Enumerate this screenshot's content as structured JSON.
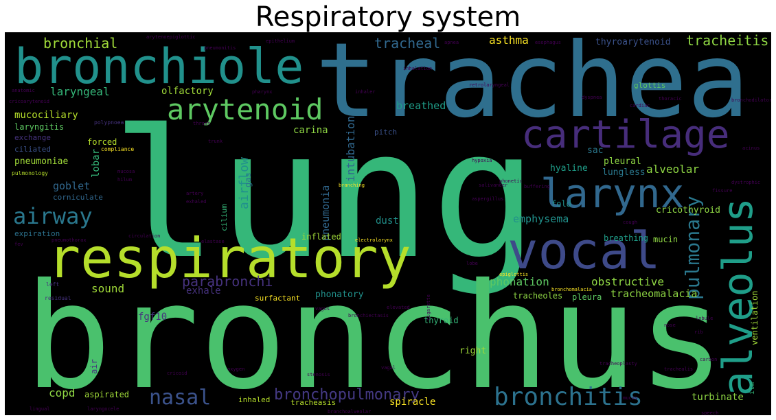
{
  "title": "Respiratory system",
  "colors": {
    "background": "#000000",
    "palette": [
      "#440154",
      "#46327e",
      "#365c8d",
      "#277f8e",
      "#1fa187",
      "#4ac16d",
      "#a0da39",
      "#fde725"
    ]
  },
  "words": {
    "lung": "lung",
    "bronchus": "bronchus",
    "trachea": "trachea",
    "respiratory": "respiratory",
    "bronchiole": "bronchiole",
    "vocal": "vocal",
    "alveolus": "alveolus",
    "cartilage": "cartilage",
    "larynx": "larynx",
    "arytenoid": "arytenoid",
    "bronchitis": "bronchitis",
    "nasal": "nasal",
    "airway": "airway",
    "bronchopulmonary": "bronchopulmonary",
    "pulmonary": "pulmonary",
    "parabronchi": "parabronchi",
    "bronchial": "bronchial",
    "tracheal": "tracheal",
    "tracheitis": "tracheitis",
    "asthma": "asthma",
    "thyroarytenoid": "thyroarytenoid",
    "laryngeal": "laryngeal",
    "olfactory": "olfactory",
    "mucociliary": "mucociliary",
    "laryngitis": "laryngitis",
    "carina": "carina",
    "intubation": "intubation",
    "breathed": "breathed",
    "pitch": "pitch",
    "airflow": "airflow",
    "gas": "gas",
    "pneumonia": "pneumonia",
    "lobar": "lobar",
    "forced": "forced",
    "pleural": "pleural",
    "hyaline": "hyaline",
    "alveolar": "alveolar",
    "lungless": "lungless",
    "sac": "sac",
    "exchange": "exchange",
    "ciliated": "ciliated",
    "pneumoniae": "pneumoniae",
    "goblet": "goblet",
    "corniculate": "corniculate",
    "dust": "dust",
    "emphysema": "emphysema",
    "cricothyroid": "cricothyroid",
    "fold": "fold",
    "breathing": "breathing",
    "mucin": "mucin",
    "expiration": "expiration",
    "inflated": "inflated",
    "sound": "sound",
    "exhale": "exhale",
    "phonation": "phonation",
    "obstructive": "obstructive",
    "surfactant": "surfactant",
    "phonatory": "phonatory",
    "tracheoles": "tracheoles",
    "pleura": "pleura",
    "tracheomalacia": "tracheomalacia",
    "ventilation": "ventilation",
    "fgf10": "fgf10",
    "thyroid": "thyroid",
    "right": "right",
    "copd": "copd",
    "aspirated": "aspirated",
    "inhaled": "inhaled",
    "tracheasis": "tracheasis",
    "spiracle": "spiracle",
    "turbinate": "turbinate",
    "glottis": "glottis",
    "air": "air",
    "cilium": "cilium",
    "left": "left",
    "residual": "residual",
    "compliance": "compliance",
    "pulmonology": "pulmonology",
    "polypnoea": "polypnoea",
    "epithelium": "epithelium",
    "pneumonitis": "pneumonitis",
    "esophagus": "esophagus",
    "pharynx": "pharynx",
    "inhaler": "inhaler",
    "inhalation": "inhalation",
    "thoracic": "thoracic",
    "cardiac": "cardiac",
    "acinus": "acinus",
    "dystrophic": "dystrophic",
    "fissure": "fissure",
    "phonetic": "phonetic",
    "buffering": "buffering",
    "aspergillus": "aspergillus",
    "salivander": "salivander",
    "branching": "branching",
    "artery": "artery",
    "hilum": "hilum",
    "mucosa": "mucosa",
    "throat": "throat",
    "trunk": "trunk",
    "cough": "cough",
    "lobe": "lobe",
    "epiglottis": "epiglottis",
    "electrolarynx": "electrolarynx",
    "pneumothorax": "pneumothorax",
    "fev": "fev",
    "circulation": "circulation",
    "elastase": "elastase",
    "bronchiectasis": "bronchiectasis",
    "elevated": "elevated",
    "vagus": "vagus",
    "cigarette": "cigarette",
    "bronchomalacia": "bronchomalacia",
    "tracheoplasty": "tracheoplasty",
    "trachealis": "trachealis",
    "ilm": "ilm",
    "speech": "speech",
    "stenosis": "stenosis",
    "cricoid": "cricoid",
    "laryngocele": "laryngocele",
    "bronchodilator": "bronchodilator",
    "arytenoepiglottic": "arytenoepiglottic",
    "exhaled": "exhaled",
    "anatomic": "anatomic",
    "cricoarytenoid": "cricoarytenoid",
    "hypoxia": "hypoxia",
    "apnea": "apnea",
    "dyspnea": "dyspnea",
    "carbon": "carbon",
    "oxygen": "oxygen",
    "mucus": "mucus",
    "nose": "nose",
    "rib": "rib",
    "lobule": "lobule",
    "bronchoalveolar": "bronchoalveolar",
    "lingual": "lingual",
    "retrolaryngeal": "retrolaryngeal",
    "vagal": "vagal"
  }
}
